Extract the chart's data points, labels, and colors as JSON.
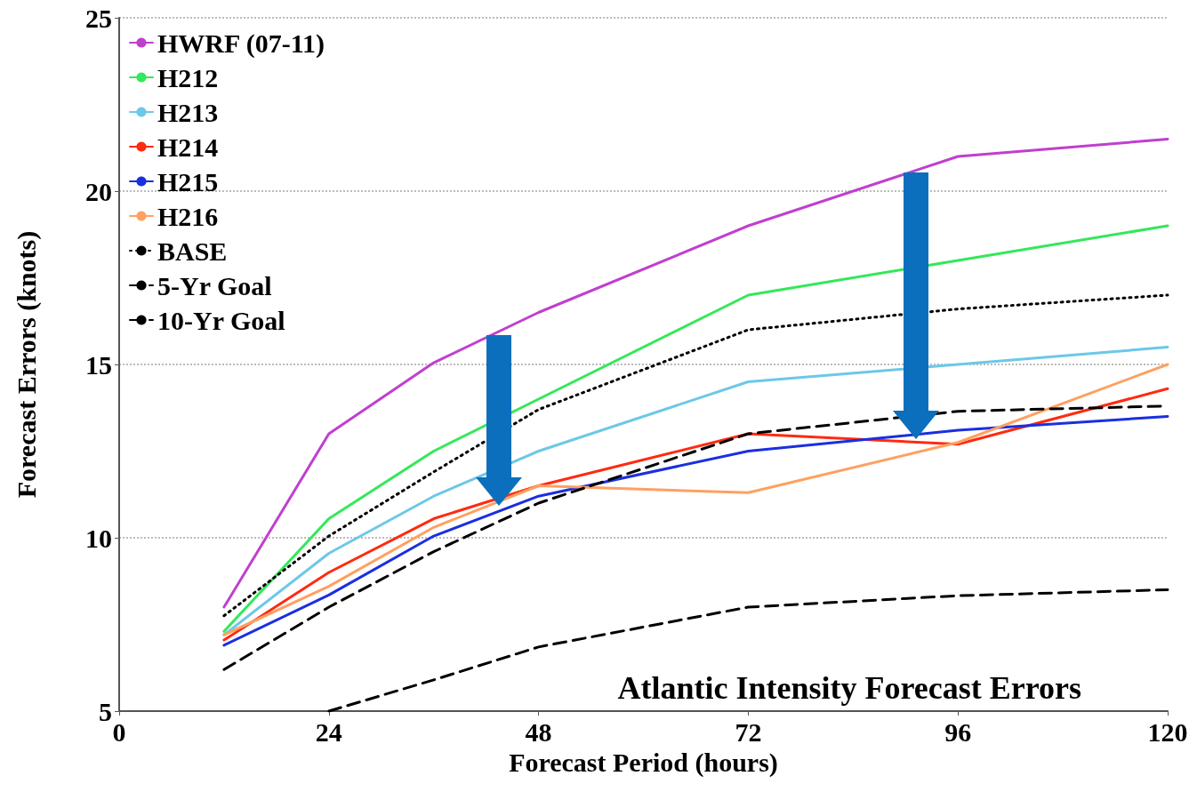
{
  "chart_data": {
    "type": "line",
    "title": "Atlantic Intensity Forecast Errors",
    "xlabel": "Forecast Period (hours)",
    "ylabel": "Forecast Errors (knots)",
    "x": [
      12,
      24,
      36,
      48,
      72,
      96,
      120
    ],
    "xlim": [
      0,
      120
    ],
    "xticks": [
      0,
      24,
      48,
      72,
      96,
      120
    ],
    "ylim": [
      5,
      25
    ],
    "yticks": [
      5,
      10,
      15,
      20,
      25
    ],
    "grid": "y",
    "legend": "top left",
    "marker": "none",
    "series": [
      {
        "name": "HWRF (07-11)",
        "color": "#c03fcf",
        "values": [
          8.0,
          13.0,
          15.05,
          16.5,
          19.0,
          21.0,
          21.5
        ]
      },
      {
        "name": "H212",
        "color": "#33e85a",
        "values": [
          7.3,
          10.55,
          12.5,
          14.0,
          17.0,
          18.0,
          19.0
        ]
      },
      {
        "name": "H213",
        "color": "#6cc8e8",
        "values": [
          7.2,
          9.55,
          11.2,
          12.5,
          14.5,
          15.0,
          15.5
        ]
      },
      {
        "name": "H214",
        "color": "#ff2a10",
        "values": [
          7.05,
          9.0,
          10.55,
          11.5,
          13.0,
          12.7,
          14.3
        ]
      },
      {
        "name": "H215",
        "color": "#1a2fe0",
        "values": [
          6.9,
          8.35,
          10.05,
          11.2,
          12.5,
          13.1,
          13.5
        ]
      },
      {
        "name": "H216",
        "color": "#ffa060",
        "values": [
          7.2,
          8.6,
          10.3,
          11.5,
          11.3,
          12.75,
          15.0
        ]
      },
      {
        "name": "BASE",
        "color": "#000000",
        "line_style": "dotted",
        "values": [
          7.75,
          10.05,
          11.9,
          13.7,
          16.0,
          16.6,
          17.0
        ]
      },
      {
        "name": "5-Yr Goal",
        "color": "#000000",
        "line_style": "dashed",
        "values": [
          6.2,
          8.0,
          9.6,
          11.0,
          13.0,
          13.65,
          13.8
        ]
      },
      {
        "name": "10-Yr Goal",
        "color": "#000000",
        "line_style": "dashed",
        "values": [
          null,
          5.0,
          5.9,
          6.85,
          8.0,
          8.33,
          8.5
        ]
      }
    ]
  }
}
